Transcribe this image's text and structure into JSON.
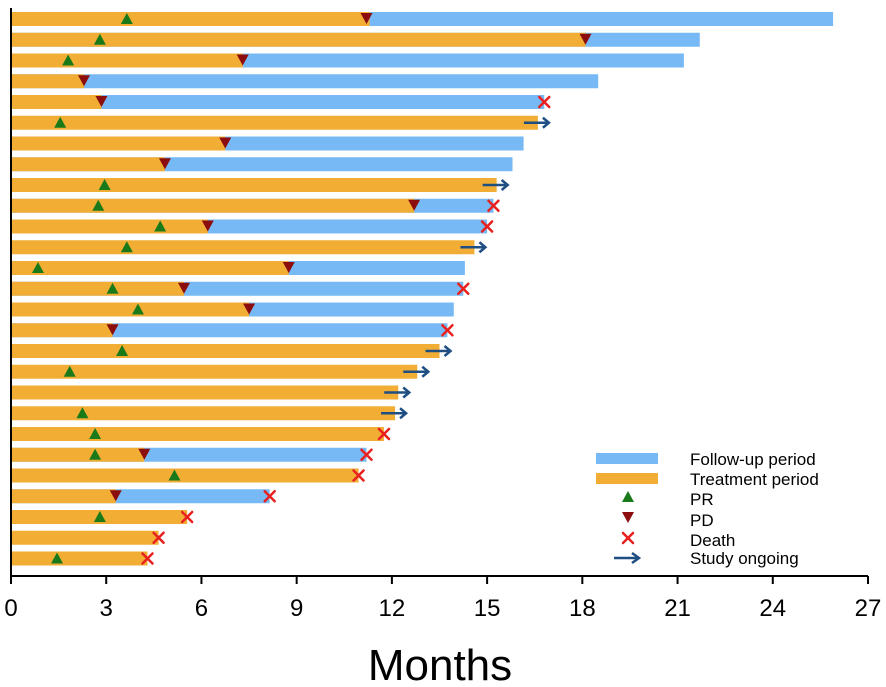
{
  "chart_data": {
    "type": "swimmer",
    "title": "",
    "xlabel": "Months",
    "ylabel": "",
    "xlim": [
      0,
      27
    ],
    "xticks": [
      "0",
      "3",
      "6",
      "9",
      "12",
      "15",
      "18",
      "21",
      "24",
      "27"
    ],
    "legend_position": "bottom-right",
    "legend": {
      "follow_up": "Follow-up period",
      "treatment": "Treatment period",
      "pr": "PR",
      "pd": "PD",
      "death": "Death",
      "ongoing": "Study ongoing"
    },
    "colors": {
      "follow_up": "#77b9f5",
      "treatment": "#f2ae34",
      "pr": "#1a7a1a",
      "pd": "#8b0d0d",
      "death": "#e8201f",
      "ongoing": "#1f4e82"
    },
    "patients": [
      {
        "treatment_end": 11.3,
        "total": 25.9,
        "pr": 3.65,
        "pd": 11.2,
        "death": null,
        "ongoing": false
      },
      {
        "treatment_end": 18.1,
        "total": 21.7,
        "pr": 2.8,
        "pd": 18.1,
        "death": null,
        "ongoing": false
      },
      {
        "treatment_end": 7.3,
        "total": 21.2,
        "pr": 1.8,
        "pd": 7.3,
        "death": null,
        "ongoing": false
      },
      {
        "treatment_end": 2.3,
        "total": 18.5,
        "pr": null,
        "pd": 2.3,
        "death": null,
        "ongoing": false
      },
      {
        "treatment_end": 2.85,
        "total": 16.8,
        "pr": null,
        "pd": 2.85,
        "death": 16.8,
        "ongoing": false
      },
      {
        "treatment_end": 16.6,
        "total": 16.6,
        "pr": 1.55,
        "pd": null,
        "death": null,
        "ongoing": true
      },
      {
        "treatment_end": 6.75,
        "total": 16.15,
        "pr": null,
        "pd": 6.75,
        "death": null,
        "ongoing": false
      },
      {
        "treatment_end": 4.85,
        "total": 15.8,
        "pr": null,
        "pd": 4.85,
        "death": null,
        "ongoing": false
      },
      {
        "treatment_end": 15.3,
        "total": 15.3,
        "pr": 2.95,
        "pd": null,
        "death": null,
        "ongoing": true
      },
      {
        "treatment_end": 12.7,
        "total": 15.2,
        "pr": 2.75,
        "pd": 12.7,
        "death": 15.2,
        "ongoing": false
      },
      {
        "treatment_end": 6.2,
        "total": 15.0,
        "pr": 4.7,
        "pd": 6.2,
        "death": 15.0,
        "ongoing": false
      },
      {
        "treatment_end": 14.6,
        "total": 14.6,
        "pr": 3.65,
        "pd": null,
        "death": null,
        "ongoing": true
      },
      {
        "treatment_end": 8.75,
        "total": 14.3,
        "pr": 0.85,
        "pd": 8.75,
        "death": null,
        "ongoing": false
      },
      {
        "treatment_end": 5.45,
        "total": 14.25,
        "pr": 3.2,
        "pd": 5.45,
        "death": 14.25,
        "ongoing": false
      },
      {
        "treatment_end": 7.5,
        "total": 13.95,
        "pr": 4.0,
        "pd": 7.5,
        "death": null,
        "ongoing": false
      },
      {
        "treatment_end": 3.2,
        "total": 13.75,
        "pr": null,
        "pd": 3.2,
        "death": 13.75,
        "ongoing": false
      },
      {
        "treatment_end": 13.5,
        "total": 13.5,
        "pr": 3.5,
        "pd": null,
        "death": null,
        "ongoing": true
      },
      {
        "treatment_end": 12.8,
        "total": 12.8,
        "pr": 1.85,
        "pd": null,
        "death": null,
        "ongoing": true
      },
      {
        "treatment_end": 12.2,
        "total": 12.2,
        "pr": null,
        "pd": null,
        "death": null,
        "ongoing": true
      },
      {
        "treatment_end": 12.1,
        "total": 12.1,
        "pr": 2.25,
        "pd": null,
        "death": null,
        "ongoing": true
      },
      {
        "treatment_end": 11.75,
        "total": 11.75,
        "pr": 2.65,
        "pd": null,
        "death": 11.75,
        "ongoing": false
      },
      {
        "treatment_end": 4.2,
        "total": 11.2,
        "pr": 2.65,
        "pd": 4.2,
        "death": 11.2,
        "ongoing": false
      },
      {
        "treatment_end": 10.95,
        "total": 10.95,
        "pr": 5.15,
        "pd": null,
        "death": 10.95,
        "ongoing": false
      },
      {
        "treatment_end": 3.3,
        "total": 8.15,
        "pr": null,
        "pd": 3.3,
        "death": 8.15,
        "ongoing": false
      },
      {
        "treatment_end": 5.55,
        "total": 5.55,
        "pr": 2.8,
        "pd": null,
        "death": 5.55,
        "ongoing": false
      },
      {
        "treatment_end": 4.65,
        "total": 4.65,
        "pr": null,
        "pd": null,
        "death": 4.65,
        "ongoing": false
      },
      {
        "treatment_end": 4.3,
        "total": 4.3,
        "pr": 1.45,
        "pd": null,
        "death": 4.3,
        "ongoing": false
      }
    ]
  }
}
